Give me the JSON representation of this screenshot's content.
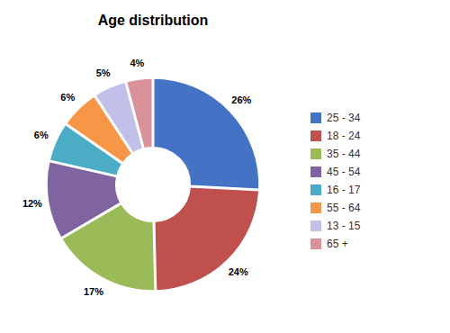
{
  "chart_data": {
    "type": "donut",
    "title": "Age distribution",
    "categories": [
      "25 - 34",
      "18 - 24",
      "35 - 44",
      "45 - 54",
      "16 - 17",
      "55 - 64",
      "13 - 15",
      "65 +"
    ],
    "values": [
      26,
      24,
      17,
      12,
      6,
      6,
      5,
      4
    ],
    "value_labels": [
      "26%",
      "24%",
      "17%",
      "12%",
      "6%",
      "6%",
      "5%",
      "4%"
    ],
    "colors": [
      "#4472C4",
      "#C0504D",
      "#9BBB59",
      "#8064A2",
      "#4BACC6",
      "#F79646",
      "#C0C0E8",
      "#D99299"
    ],
    "data_labels": true,
    "legend": "right"
  }
}
